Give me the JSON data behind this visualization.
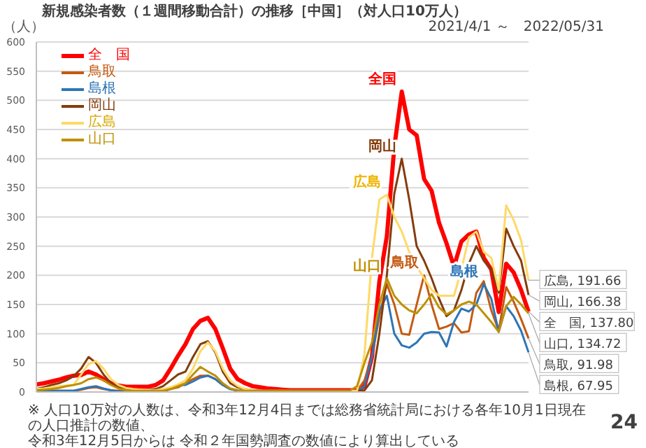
{
  "chart_data": {
    "type": "line",
    "title": "新規感染者数（１週間移動合計）の推移［中国］（対人口10万人）",
    "subtitle": "2021/4/1 ～　2022/05/31",
    "ylabel": "（人）",
    "categories": [
      null,
      null,
      null,
      null,
      null,
      null,
      null,
      null,
      null,
      null,
      null,
      null,
      null,
      null,
      null,
      null,
      null,
      null,
      null,
      null,
      null,
      null,
      null,
      null,
      null,
      null,
      null,
      null,
      null,
      null,
      null,
      null,
      null,
      null,
      null,
      null,
      null,
      null,
      null,
      null,
      null,
      null,
      null,
      null,
      null,
      null,
      null,
      null,
      null,
      null,
      null,
      null,
      null,
      null,
      null,
      null,
      null,
      null,
      null,
      null,
      null,
      null,
      null,
      null,
      null,
      null,
      null
    ],
    "ylim": [
      0,
      600
    ],
    "yticks": [
      0,
      50,
      100,
      150,
      200,
      250,
      300,
      350,
      400,
      450,
      500,
      550,
      600
    ],
    "grid": "y",
    "legend": "top left",
    "marker": "none",
    "line_style": "solid",
    "series": [
      {
        "name": "全　国",
        "color": "#ff0000",
        "values": [
          13,
          15,
          18,
          21,
          25,
          28,
          29,
          35,
          30,
          22,
          15,
          11,
          9,
          9,
          9,
          9,
          12,
          20,
          40,
          62,
          82,
          108,
          122,
          127,
          108,
          75,
          40,
          22,
          15,
          10,
          8,
          6,
          5,
          4,
          3,
          3,
          3,
          3,
          3,
          3,
          3,
          3,
          3,
          3,
          10,
          60,
          190,
          267,
          420,
          515,
          450,
          440,
          365,
          345,
          290,
          255,
          215,
          258,
          270,
          275,
          230,
          210,
          137,
          220,
          205,
          175,
          137.8
        ],
        "value_labels": [
          null,
          null,
          null,
          null,
          null,
          null,
          null,
          null,
          null,
          null,
          null,
          null,
          null,
          null,
          null,
          null,
          null,
          null,
          null,
          null,
          null,
          null,
          null,
          null,
          null,
          null,
          null,
          null,
          null,
          null,
          null,
          null,
          null,
          null,
          null,
          null,
          null,
          null,
          null,
          null,
          null,
          null,
          null,
          null,
          null,
          null,
          null,
          null,
          null,
          null,
          null,
          null,
          null,
          null,
          null,
          null,
          null,
          null,
          null,
          null,
          null,
          null,
          null,
          null,
          null,
          null,
          "全　国, 137.80"
        ]
      },
      {
        "name": "鳥取",
        "color": "#c55a11",
        "values": [
          2,
          2,
          2,
          2,
          2,
          2,
          4,
          7,
          8,
          5,
          3,
          2,
          2,
          2,
          2,
          2,
          2,
          2,
          5,
          8,
          15,
          22,
          28,
          28,
          22,
          12,
          5,
          3,
          2,
          2,
          2,
          2,
          2,
          2,
          2,
          2,
          2,
          2,
          2,
          2,
          2,
          2,
          2,
          2,
          20,
          60,
          130,
          185,
          150,
          100,
          98,
          150,
          200,
          150,
          108,
          112,
          118,
          102,
          104,
          170,
          190,
          140,
          105,
          180,
          155,
          125,
          91.98
        ],
        "value_labels": [
          null,
          null,
          null,
          null,
          null,
          null,
          null,
          null,
          null,
          null,
          null,
          null,
          null,
          null,
          null,
          null,
          null,
          null,
          null,
          null,
          null,
          null,
          null,
          null,
          null,
          null,
          null,
          null,
          null,
          null,
          null,
          null,
          null,
          null,
          null,
          null,
          null,
          null,
          null,
          null,
          null,
          null,
          null,
          null,
          null,
          null,
          null,
          null,
          null,
          null,
          null,
          null,
          null,
          null,
          null,
          null,
          null,
          null,
          null,
          null,
          null,
          null,
          null,
          null,
          null,
          null,
          "鳥取, 91.98"
        ]
      },
      {
        "name": "島根",
        "color": "#2e75b6",
        "values": [
          2,
          2,
          2,
          2,
          2,
          2,
          5,
          8,
          10,
          6,
          3,
          1,
          1,
          1,
          1,
          1,
          1,
          1,
          5,
          12,
          12,
          18,
          25,
          28,
          22,
          12,
          5,
          2,
          1,
          1,
          1,
          1,
          1,
          1,
          1,
          1,
          1,
          1,
          1,
          1,
          1,
          1,
          1,
          1,
          10,
          60,
          140,
          165,
          100,
          80,
          76,
          85,
          100,
          103,
          102,
          78,
          120,
          143,
          138,
          150,
          185,
          160,
          103,
          147,
          130,
          105,
          67.95
        ],
        "value_labels": [
          null,
          null,
          null,
          null,
          null,
          null,
          null,
          null,
          null,
          null,
          null,
          null,
          null,
          null,
          null,
          null,
          null,
          null,
          null,
          null,
          null,
          null,
          null,
          null,
          null,
          null,
          null,
          null,
          null,
          null,
          null,
          null,
          null,
          null,
          null,
          null,
          null,
          null,
          null,
          null,
          null,
          null,
          null,
          null,
          null,
          null,
          null,
          null,
          null,
          null,
          null,
          null,
          null,
          null,
          null,
          null,
          null,
          null,
          null,
          null,
          null,
          null,
          null,
          null,
          null,
          null,
          "島根, 67.95"
        ]
      },
      {
        "name": "岡山",
        "color": "#843c0c",
        "values": [
          5,
          8,
          12,
          15,
          20,
          27,
          40,
          60,
          50,
          30,
          15,
          8,
          4,
          3,
          3,
          3,
          5,
          10,
          20,
          30,
          35,
          60,
          82,
          87,
          68,
          35,
          15,
          8,
          5,
          3,
          2,
          2,
          2,
          2,
          2,
          2,
          2,
          2,
          2,
          2,
          2,
          2,
          2,
          2,
          3,
          20,
          100,
          200,
          340,
          400,
          330,
          250,
          225,
          195,
          160,
          130,
          140,
          175,
          220,
          250,
          225,
          210,
          170,
          280,
          250,
          225,
          166.38
        ],
        "value_labels": [
          null,
          null,
          null,
          null,
          null,
          null,
          null,
          null,
          null,
          null,
          null,
          null,
          null,
          null,
          null,
          null,
          null,
          null,
          null,
          null,
          null,
          null,
          null,
          null,
          null,
          null,
          null,
          null,
          null,
          null,
          null,
          null,
          null,
          null,
          null,
          null,
          null,
          null,
          null,
          null,
          null,
          null,
          null,
          null,
          null,
          null,
          null,
          null,
          null,
          null,
          null,
          null,
          null,
          null,
          null,
          null,
          null,
          null,
          null,
          null,
          null,
          null,
          null,
          null,
          null,
          null,
          "岡山, 166.38"
        ]
      },
      {
        "name": "広島",
        "color": "#ffd966",
        "values": [
          5,
          6,
          8,
          10,
          11,
          12,
          30,
          48,
          53,
          40,
          22,
          12,
          7,
          5,
          4,
          3,
          3,
          5,
          8,
          13,
          20,
          40,
          70,
          85,
          70,
          40,
          20,
          10,
          5,
          3,
          2,
          2,
          2,
          2,
          2,
          2,
          2,
          2,
          2,
          2,
          2,
          2,
          2,
          2,
          65,
          230,
          330,
          338,
          300,
          275,
          240,
          215,
          195,
          175,
          165,
          165,
          165,
          210,
          265,
          275,
          240,
          230,
          175,
          320,
          295,
          260,
          191.66
        ],
        "value_labels": [
          null,
          null,
          null,
          null,
          null,
          null,
          null,
          null,
          null,
          null,
          null,
          null,
          null,
          null,
          null,
          null,
          null,
          null,
          null,
          null,
          null,
          null,
          null,
          null,
          null,
          null,
          null,
          null,
          null,
          null,
          null,
          null,
          null,
          null,
          null,
          null,
          null,
          null,
          null,
          null,
          null,
          null,
          null,
          null,
          null,
          null,
          null,
          null,
          null,
          null,
          null,
          null,
          null,
          null,
          null,
          null,
          null,
          null,
          null,
          null,
          null,
          null,
          null,
          null,
          null,
          null,
          "広島, 191.66"
        ]
      },
      {
        "name": "山口",
        "color": "#bf9000",
        "values": [
          3,
          4,
          5,
          7,
          10,
          12,
          15,
          22,
          25,
          20,
          12,
          6,
          3,
          2,
          2,
          2,
          2,
          2,
          5,
          10,
          15,
          30,
          43,
          35,
          28,
          15,
          6,
          3,
          2,
          2,
          2,
          2,
          2,
          2,
          2,
          2,
          2,
          2,
          2,
          2,
          2,
          2,
          2,
          10,
          50,
          85,
          150,
          195,
          165,
          150,
          140,
          135,
          150,
          168,
          145,
          133,
          140,
          150,
          155,
          150,
          135,
          120,
          103,
          147,
          163,
          150,
          134.72
        ],
        "value_labels": [
          null,
          null,
          null,
          null,
          null,
          null,
          null,
          null,
          null,
          null,
          null,
          null,
          null,
          null,
          null,
          null,
          null,
          null,
          null,
          null,
          null,
          null,
          null,
          null,
          null,
          null,
          null,
          null,
          null,
          null,
          null,
          null,
          null,
          null,
          null,
          null,
          null,
          null,
          null,
          null,
          null,
          null,
          null,
          null,
          null,
          null,
          null,
          null,
          null,
          null,
          null,
          null,
          null,
          null,
          null,
          null,
          null,
          null,
          null,
          null,
          null,
          null,
          null,
          null,
          null,
          null,
          "山口, 134.72"
        ]
      }
    ],
    "annotations": [
      "全国",
      "鳥取",
      "島根",
      "岡山",
      "広島",
      "山口",
      "※ 人口10万対の人数は、令和3年12月4日までは総務省統計局における各年10月1日現在の人口推計の数値、",
      "令和3年12月5日からは 令和２年国勢調査の数値により算出している",
      "24"
    ]
  }
}
